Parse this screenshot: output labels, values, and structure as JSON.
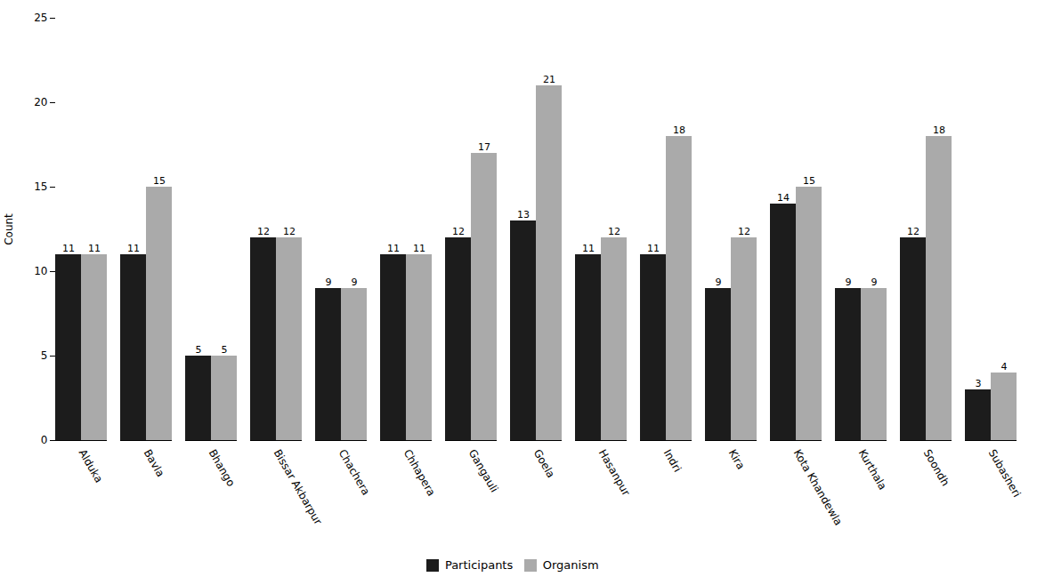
{
  "chart_data": {
    "type": "bar",
    "categories": [
      "Alduka",
      "Bavla",
      "Bhango",
      "Bissar Akbarpur",
      "Chachera",
      "Chhapera",
      "Gangauli",
      "Goela",
      "Hasanpur",
      "Indri",
      "Kira",
      "Kota Khandewla",
      "Kurthala",
      "Soondh",
      "Subasheri"
    ],
    "series": [
      {
        "name": "Participants",
        "color": "#1c1c1c",
        "values": [
          11,
          11,
          5,
          12,
          9,
          11,
          12,
          13,
          11,
          11,
          9,
          14,
          9,
          12,
          3
        ]
      },
      {
        "name": "Organism",
        "color": "#aaaaaa",
        "values": [
          11,
          15,
          5,
          12,
          9,
          11,
          17,
          21,
          12,
          18,
          12,
          15,
          9,
          18,
          4
        ]
      }
    ],
    "ylabel": "Count",
    "ylim": [
      0,
      25
    ],
    "yticks": [
      0,
      5,
      10,
      15,
      20,
      25
    ],
    "grid": false,
    "legend": "bottom",
    "data_labels": true
  }
}
